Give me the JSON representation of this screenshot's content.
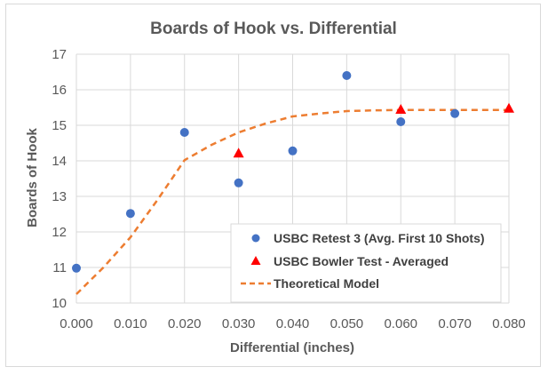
{
  "chart_data": {
    "type": "scatter",
    "title": "Boards of Hook vs. Differential",
    "xlabel": "Differential (inches)",
    "ylabel": "Boards of Hook",
    "xlim": [
      0,
      0.08
    ],
    "ylim": [
      10,
      17
    ],
    "xticks": [
      0.0,
      0.01,
      0.02,
      0.03,
      0.04,
      0.05,
      0.06,
      0.07,
      0.08
    ],
    "xtick_labels": [
      "0.000",
      "0.010",
      "0.020",
      "0.030",
      "0.040",
      "0.050",
      "0.060",
      "0.070",
      "0.080"
    ],
    "yticks": [
      10,
      11,
      12,
      13,
      14,
      15,
      16,
      17
    ],
    "ytick_labels": [
      "10",
      "11",
      "12",
      "13",
      "14",
      "15",
      "16",
      "17"
    ],
    "grid": true,
    "legend_position": "bottom-right",
    "series": [
      {
        "name": "USBC Retest 3 (Avg. First 10 Shots)",
        "kind": "scatter",
        "marker": "circle",
        "color": "#4472c4",
        "x": [
          0.0,
          0.01,
          0.02,
          0.03,
          0.04,
          0.05,
          0.06,
          0.07
        ],
        "y": [
          10.98,
          12.52,
          14.8,
          13.38,
          14.28,
          16.4,
          15.1,
          15.33
        ]
      },
      {
        "name": "USBC Bowler Test - Averaged",
        "kind": "scatter",
        "marker": "triangle",
        "color": "#ff0000",
        "x": [
          0.03,
          0.06,
          0.08
        ],
        "y": [
          14.22,
          15.45,
          15.48
        ]
      },
      {
        "name": "Theoretical Model",
        "kind": "line",
        "style": "dashed",
        "color": "#ed7d31",
        "x": [
          0.0,
          0.005,
          0.01,
          0.015,
          0.02,
          0.025,
          0.03,
          0.035,
          0.04,
          0.045,
          0.05,
          0.055,
          0.06,
          0.065,
          0.07,
          0.075,
          0.08
        ],
        "y": [
          10.25,
          11.0,
          11.85,
          12.9,
          14.02,
          14.45,
          14.8,
          15.05,
          15.25,
          15.33,
          15.4,
          15.42,
          15.43,
          15.43,
          15.43,
          15.43,
          15.43
        ]
      }
    ]
  }
}
